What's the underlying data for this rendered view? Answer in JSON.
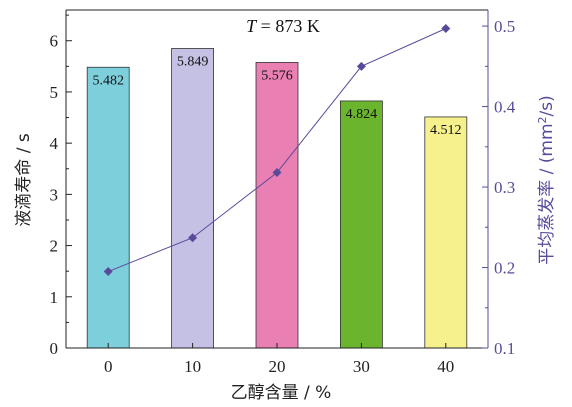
{
  "chart_data": {
    "type": "bar",
    "categories": [
      "0",
      "10",
      "20",
      "30",
      "40"
    ],
    "series": [
      {
        "values": [
          5.482,
          5.849,
          5.576,
          4.824,
          4.512
        ],
        "value_labels": [
          "5.482",
          "5.849",
          "5.576",
          "4.824",
          "4.512"
        ],
        "colors": [
          "#7ecfdc",
          "#c5c1e5",
          "#e97fb2",
          "#6bb52e",
          "#f6f18d"
        ],
        "axis": "left"
      },
      {
        "type": "line",
        "values": [
          0.195,
          0.237,
          0.318,
          0.45,
          0.497
        ],
        "color": "#5a4a9a",
        "axis": "right"
      }
    ],
    "annotation": {
      "italic": "T",
      "text": " = 873 K"
    },
    "xlabel": "乙醇含量 / %",
    "ylabel": "液滴寿命 / s",
    "y2label_prefix": "平均蒸发率 / (mm",
    "y2label_sup": "2",
    "y2label_suffix": "/s)",
    "ylim": [
      0,
      6.6
    ],
    "y2lim": [
      0.1,
      0.52
    ],
    "yticks": [
      "0",
      "1",
      "2",
      "3",
      "4",
      "5",
      "6"
    ],
    "y2ticks": [
      "0.1",
      "0.2",
      "0.3",
      "0.4",
      "0.5"
    ],
    "grid": false,
    "legend": "none"
  }
}
